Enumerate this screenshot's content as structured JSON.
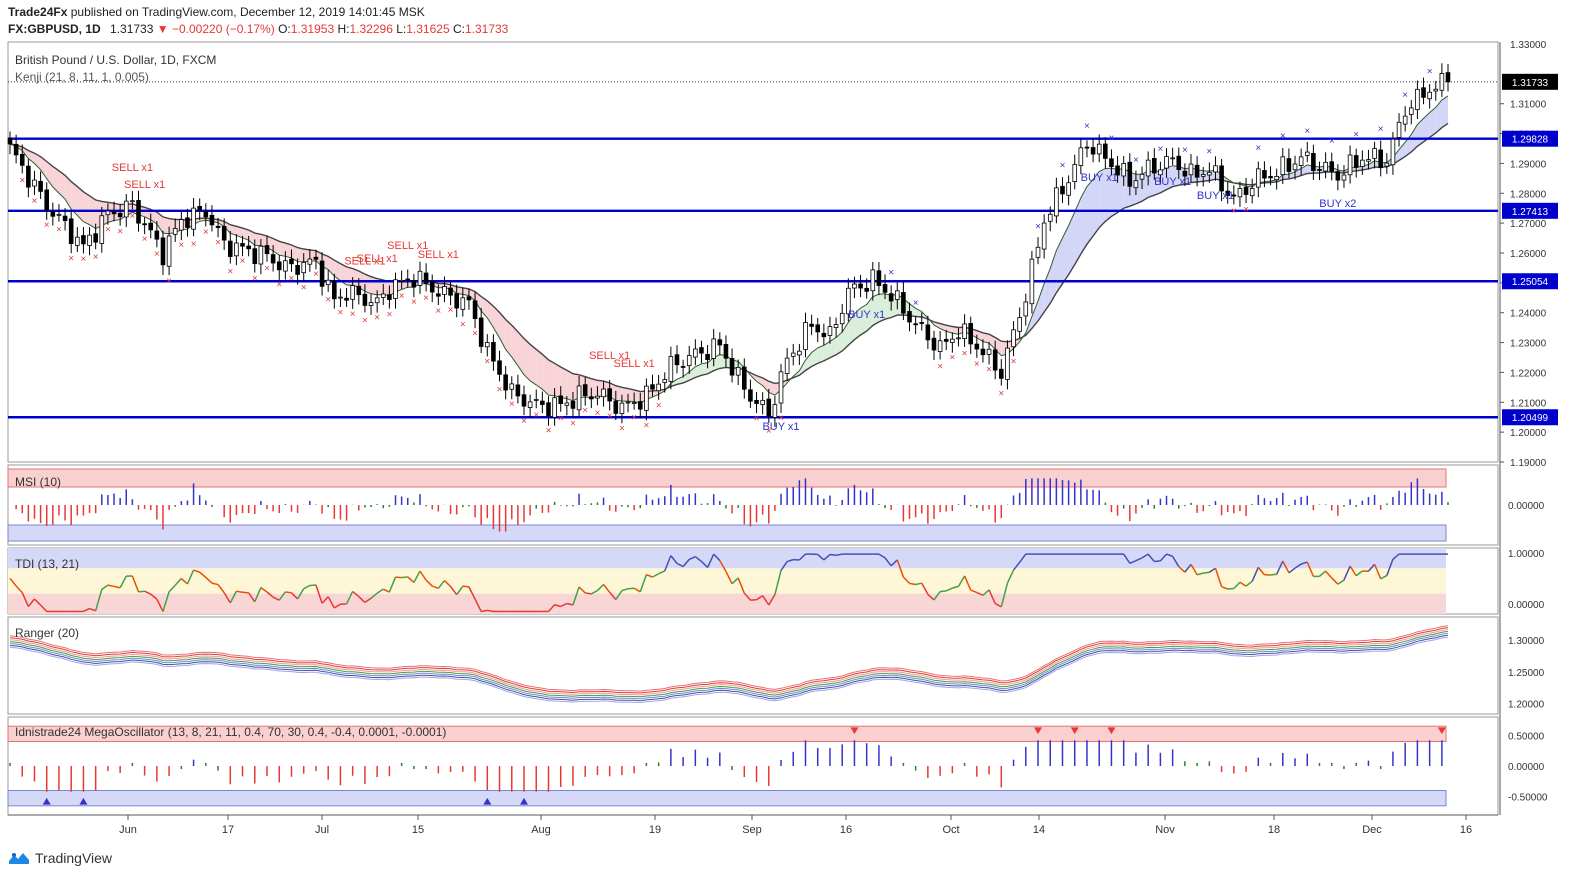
{
  "header": {
    "publisher": "Trade24Fx",
    "published_text": "published on TradingView.com, December 12, 2019 14:01:45 MSK",
    "symbol": "FX:GBPUSD, 1D",
    "last": "1.31733",
    "change": "▼ −0.00220 (−0.17%)",
    "o_label": "O:",
    "o": "1.31953",
    "h_label": "H:",
    "h": "1.32296",
    "l_label": "L:",
    "l": "1.31625",
    "c_label": "C:",
    "c": "1.31733"
  },
  "footer": {
    "brand": "TradingView"
  },
  "colors": {
    "bull": "#ffffff",
    "bear": "#000000",
    "level": "#0000cc",
    "buy": "#3333cc",
    "sell": "#e53935",
    "price_box": "#000000"
  },
  "chart_data": [
    {
      "type": "candlestick",
      "title": "British Pound / U.S. Dollar, 1D, FXCM",
      "indicator_label": "Kenji (21, 8, 11, 1, 0.005)",
      "ylim": [
        1.19,
        1.33
      ],
      "yticks": [
        "1.33000",
        "1.31000",
        "1.30000",
        "1.29000",
        "1.28000",
        "1.27000",
        "1.26000",
        "1.25000",
        "1.24000",
        "1.23000",
        "1.22000",
        "1.21000",
        "1.20000",
        "1.19000"
      ],
      "price_labels": [
        "1.31733",
        "1.29828",
        "1.27413",
        "1.25054",
        "1.20499"
      ],
      "horizontal_levels": [
        1.29828,
        1.27413,
        1.25054,
        1.20499
      ],
      "last_price": 1.31733,
      "x_labels": [
        "Jun",
        "17",
        "Jul",
        "15",
        "Aug",
        "19",
        "Sep",
        "16",
        "Oct",
        "14",
        "Nov",
        "18",
        "Dec",
        "16"
      ],
      "anchor_closes": [
        [
          0,
          1.295
        ],
        [
          6,
          1.276
        ],
        [
          12,
          1.262
        ],
        [
          16,
          1.273
        ],
        [
          20,
          1.276
        ],
        [
          25,
          1.26
        ],
        [
          28,
          1.271
        ],
        [
          32,
          1.274
        ],
        [
          35,
          1.263
        ],
        [
          42,
          1.259
        ],
        [
          45,
          1.255
        ],
        [
          50,
          1.257
        ],
        [
          53,
          1.244
        ],
        [
          55,
          1.247
        ],
        [
          60,
          1.243
        ],
        [
          62,
          1.248
        ],
        [
          66,
          1.252
        ],
        [
          70,
          1.247
        ],
        [
          75,
          1.243
        ],
        [
          78,
          1.227
        ],
        [
          82,
          1.213
        ],
        [
          86,
          1.209
        ],
        [
          90,
          1.209
        ],
        [
          93,
          1.212
        ],
        [
          96,
          1.213
        ],
        [
          100,
          1.208
        ],
        [
          104,
          1.212
        ],
        [
          108,
          1.222
        ],
        [
          112,
          1.226
        ],
        [
          116,
          1.229
        ],
        [
          119,
          1.218
        ],
        [
          121,
          1.212
        ],
        [
          124,
          1.206
        ],
        [
          127,
          1.224
        ],
        [
          131,
          1.236
        ],
        [
          134,
          1.232
        ],
        [
          137,
          1.247
        ],
        [
          141,
          1.251
        ],
        [
          144,
          1.246
        ],
        [
          148,
          1.236
        ],
        [
          152,
          1.228
        ],
        [
          155,
          1.234
        ],
        [
          158,
          1.229
        ],
        [
          162,
          1.22
        ],
        [
          166,
          1.246
        ],
        [
          169,
          1.271
        ],
        [
          173,
          1.285
        ],
        [
          176,
          1.297
        ],
        [
          180,
          1.29
        ],
        [
          183,
          1.284
        ],
        [
          186,
          1.288
        ],
        [
          190,
          1.291
        ],
        [
          193,
          1.286
        ],
        [
          196,
          1.288
        ],
        [
          200,
          1.278
        ],
        [
          204,
          1.285
        ],
        [
          207,
          1.287
        ],
        [
          211,
          1.292
        ],
        [
          214,
          1.289
        ],
        [
          217,
          1.286
        ],
        [
          221,
          1.292
        ],
        [
          225,
          1.291
        ],
        [
          228,
          1.308
        ],
        [
          232,
          1.315
        ],
        [
          235,
          1.317
        ]
      ],
      "sell_signals": [
        {
          "label": "SELL x1",
          "bar": 20
        },
        {
          "label": "SELL x1",
          "bar": 22
        },
        {
          "label": "SELL x1",
          "bar": 58
        },
        {
          "label": "SELL x1",
          "bar": 60
        },
        {
          "label": "SELL x1",
          "bar": 65
        },
        {
          "label": "SELL x1",
          "bar": 70
        },
        {
          "label": "SELL x1",
          "bar": 98
        },
        {
          "label": "SELL x1",
          "bar": 102
        }
      ],
      "buy_signals": [
        {
          "label": "BUY x1",
          "bar": 126
        },
        {
          "label": "BUY x1",
          "bar": 140
        },
        {
          "label": "BUY x1",
          "bar": 178
        },
        {
          "label": "BUY x1",
          "bar": 190
        },
        {
          "label": "BUY x1",
          "bar": 197
        },
        {
          "label": "BUY x2",
          "bar": 217
        }
      ]
    },
    {
      "type": "bar",
      "title": "MSI (10)",
      "ylim": [
        -0.1,
        0.1
      ],
      "yticks": [
        "0.00000"
      ]
    },
    {
      "type": "line",
      "title": "TDI (13, 21)",
      "ylim": [
        -0.2,
        1.1
      ],
      "yticks": [
        "1.00000",
        "0.00000"
      ]
    },
    {
      "type": "line",
      "title": "Ranger (20)",
      "ylim": [
        1.19,
        1.33
      ],
      "yticks": [
        "1.30000",
        "1.25000",
        "1.20000"
      ]
    },
    {
      "type": "bar",
      "title": "Idnistrade24 MegaOscillator (13, 8, 21, 11, 0.4, 70, 30, 0.4, -0.4, 0.0001, -0.0001)",
      "ylim": [
        -0.8,
        0.8
      ],
      "yticks": [
        "0.50000",
        "0.00000",
        "-0.50000"
      ]
    }
  ]
}
